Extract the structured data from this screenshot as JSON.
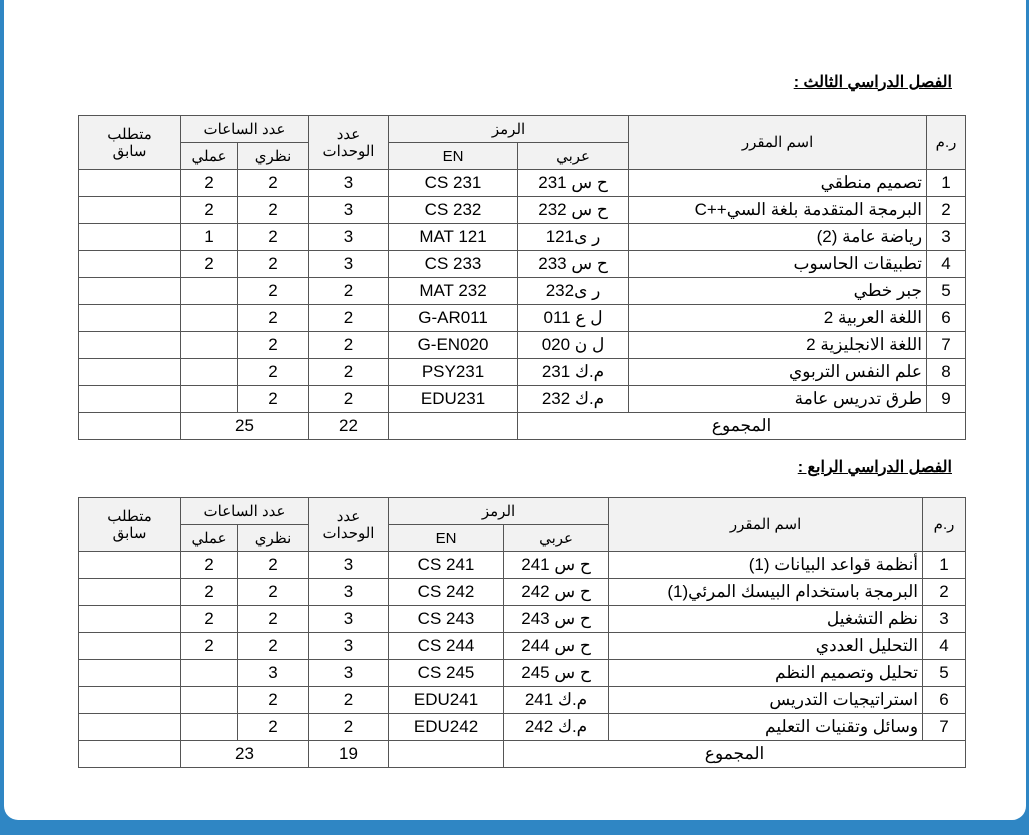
{
  "semesters": [
    {
      "title": "الفصل الدراسي الثالث :",
      "headers": {
        "num": "ر.م",
        "name": "اسم المقرر",
        "code": "الرمز",
        "code_ar": "عربي",
        "code_en": "EN",
        "units_1": "عدد",
        "units_2": "الوحدات",
        "hours": "عدد الساعات",
        "theory": "نظري",
        "practical": "عملي",
        "prereq_1": "متطلب",
        "prereq_2": "سابق"
      },
      "rows": [
        {
          "num": "1",
          "name": "تصميم منطقي",
          "ar": "ح س 231",
          "en": "CS 231",
          "units": "3",
          "theory": "2",
          "practical": "2",
          "prereq": ""
        },
        {
          "num": "2",
          "name": "البرمجة المتقدمة بلغة السي++C",
          "ar": "ح س 232",
          "en": "CS 232",
          "units": "3",
          "theory": "2",
          "practical": "2",
          "prereq": ""
        },
        {
          "num": "3",
          "name": "رياضة عامة (2)",
          "ar": "ر ى121",
          "en": "MAT 121",
          "units": "3",
          "theory": "2",
          "practical": "1",
          "prereq": ""
        },
        {
          "num": "4",
          "name": "تطبيقات الحاسوب",
          "ar": "ح س 233",
          "en": "CS 233",
          "units": "3",
          "theory": "2",
          "practical": "2",
          "prereq": ""
        },
        {
          "num": "5",
          "name": "جبر خطي",
          "ar": "ر ى232",
          "en": "MAT 232",
          "units": "2",
          "theory": "2",
          "practical": "",
          "prereq": ""
        },
        {
          "num": "6",
          "name": "اللغة العربية 2",
          "ar": "ل ع 011",
          "en": "G-AR011",
          "units": "2",
          "theory": "2",
          "practical": "",
          "prereq": ""
        },
        {
          "num": "7",
          "name": "اللغة الانجليزية 2",
          "ar": "ل ن 020",
          "en": "G-EN020",
          "units": "2",
          "theory": "2",
          "practical": "",
          "prereq": ""
        },
        {
          "num": "8",
          "name": "علم النفس التربوي",
          "ar": "م.ك 231",
          "en": "PSY231",
          "units": "2",
          "theory": "2",
          "practical": "",
          "prereq": ""
        },
        {
          "num": "9",
          "name": "طرق تدريس عامة",
          "ar": "م.ك 232",
          "en": "EDU231",
          "units": "2",
          "theory": "2",
          "practical": "",
          "prereq": ""
        }
      ],
      "total": {
        "label": "المجموع",
        "units": "22",
        "hours": "25"
      }
    },
    {
      "title": "الفصل الدراسي الرابع :",
      "headers": {
        "num": "ر.م",
        "name": "اسم المقرر",
        "code": "الرمز",
        "code_ar": "عربي",
        "code_en": "EN",
        "units_1": "عدد",
        "units_2": "الوحدات",
        "hours": "عدد الساعات",
        "theory": "نظري",
        "practical": "عملي",
        "prereq_1": "متطلب",
        "prereq_2": "سابق"
      },
      "rows": [
        {
          "num": "1",
          "name": "أنظمة قواعد البيانات (1)",
          "ar": "ح س 241",
          "en": "CS 241",
          "units": "3",
          "theory": "2",
          "practical": "2",
          "prereq": ""
        },
        {
          "num": "2",
          "name": "البرمجة باستخدام البيسك المرئي(1)",
          "ar": "ح س 242",
          "en": "CS 242",
          "units": "3",
          "theory": "2",
          "practical": "2",
          "prereq": ""
        },
        {
          "num": "3",
          "name": "نظم التشغيل",
          "ar": "ح س 243",
          "en": "CS 243",
          "units": "3",
          "theory": "2",
          "practical": "2",
          "prereq": ""
        },
        {
          "num": "4",
          "name": "التحليل العددي",
          "ar": "ح س 244",
          "en": "CS 244",
          "units": "3",
          "theory": "2",
          "practical": "2",
          "prereq": ""
        },
        {
          "num": "5",
          "name": "تحليل وتصميم النظم",
          "ar": "ح س 245",
          "en": "CS 245",
          "units": "3",
          "theory": "3",
          "practical": "",
          "prereq": ""
        },
        {
          "num": "6",
          "name": "استراتيجيات التدريس",
          "ar": "م.ك 241",
          "en": "EDU241",
          "units": "2",
          "theory": "2",
          "practical": "",
          "prereq": ""
        },
        {
          "num": "7",
          "name": "وسائل وتقنيات التعليم",
          "ar": "م.ك 242",
          "en": "EDU242",
          "units": "2",
          "theory": "2",
          "practical": "",
          "prereq": ""
        }
      ],
      "total": {
        "label": "المجموع",
        "units": "19",
        "hours": "23"
      }
    }
  ]
}
